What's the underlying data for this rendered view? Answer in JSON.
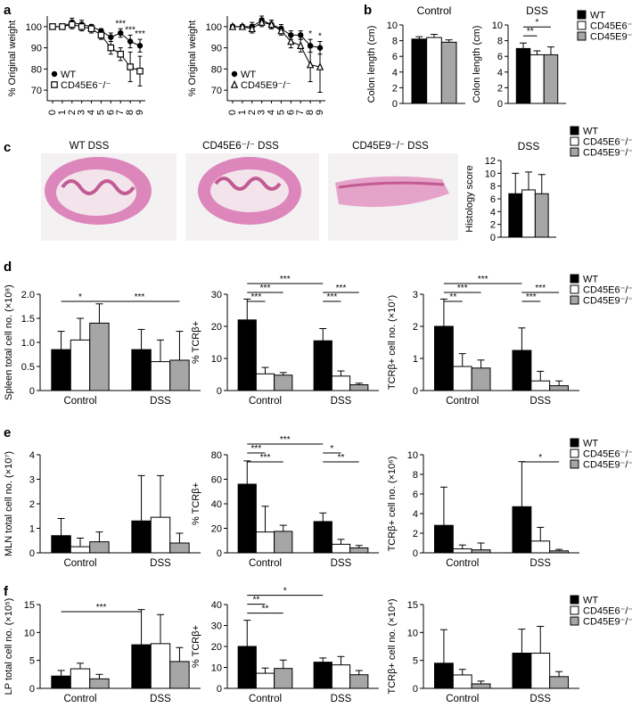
{
  "colors": {
    "WT": "#000000",
    "E6": "#ffffff",
    "E9": "#a6a6a6",
    "tissue": "#e6a3c9",
    "tissue_dark": "#c25a93"
  },
  "panel_labels": {
    "a": "a",
    "b": "b",
    "c": "c",
    "d": "d",
    "e": "e",
    "f": "f"
  },
  "legend": {
    "WT": "WT",
    "E6": "CD45E6⁻/⁻",
    "E9": "CD45E9⁻/⁻"
  },
  "histology": {
    "titles": [
      "WT DSS",
      "CD45E6⁻/⁻ DSS",
      "CD45E9⁻/⁻ DSS"
    ]
  },
  "chart_data": [
    {
      "id": "a1",
      "type": "line",
      "ylabel": "% Original weight",
      "x": [
        0,
        1,
        2,
        3,
        4,
        5,
        6,
        7,
        8,
        9
      ],
      "ylim": [
        65,
        105
      ],
      "yticks": [
        70,
        80,
        90,
        100
      ],
      "legend": [
        "WT",
        "CD45E6⁻/⁻"
      ],
      "series": [
        {
          "name": "WT",
          "marker": "filled-circle",
          "values": [
            100,
            100,
            102,
            101,
            100,
            98,
            95,
            97,
            93,
            91
          ],
          "err": [
            1,
            1,
            2,
            2,
            1,
            1,
            2,
            2,
            3,
            3
          ]
        },
        {
          "name": "CD45E6⁻/⁻",
          "marker": "open-square",
          "values": [
            100,
            100,
            101,
            100,
            99,
            96,
            90,
            87,
            81,
            79
          ],
          "err": [
            1,
            1,
            2,
            2,
            2,
            2,
            3,
            3,
            7,
            7
          ]
        }
      ],
      "annotations": [
        {
          "x": 7,
          "text": "***"
        },
        {
          "x": 8,
          "text": "***"
        },
        {
          "x": 9,
          "text": "***"
        }
      ]
    },
    {
      "id": "a2",
      "type": "line",
      "ylabel": "% Original weight",
      "x": [
        0,
        1,
        2,
        3,
        4,
        5,
        6,
        7,
        8,
        9
      ],
      "ylim": [
        65,
        105
      ],
      "yticks": [
        70,
        80,
        90,
        100
      ],
      "legend": [
        "WT",
        "CD45E9⁻/⁻"
      ],
      "series": [
        {
          "name": "WT",
          "marker": "filled-circle",
          "values": [
            100,
            100,
            100,
            103,
            101,
            99,
            96,
            96,
            91,
            90
          ],
          "err": [
            1,
            1,
            2,
            2,
            2,
            2,
            2,
            2,
            3,
            3
          ]
        },
        {
          "name": "CD45E9⁻/⁻",
          "marker": "open-triangle",
          "values": [
            100,
            100,
            99,
            102,
            101,
            98,
            93,
            91,
            82,
            81
          ],
          "err": [
            1,
            1,
            2,
            2,
            2,
            2,
            3,
            3,
            8,
            12
          ]
        }
      ],
      "annotations": [
        {
          "x": 8,
          "text": "*"
        },
        {
          "x": 9,
          "text": "*"
        }
      ]
    },
    {
      "id": "b1",
      "type": "bar",
      "title": "Control",
      "ylabel": "Colon length (cm)",
      "ylim": [
        0,
        10
      ],
      "yticks": [
        0,
        2,
        4,
        6,
        8,
        10
      ],
      "groups": [
        {
          "label": "",
          "values": [
            8.2,
            8.4,
            7.8
          ],
          "err": [
            0.3,
            0.4,
            0.3
          ]
        }
      ],
      "sig": []
    },
    {
      "id": "b2",
      "type": "bar",
      "title": "DSS",
      "ylabel": "Colon length (cm)",
      "ylim": [
        0,
        10
      ],
      "yticks": [
        0,
        2,
        4,
        6,
        8,
        10
      ],
      "groups": [
        {
          "label": "",
          "values": [
            7.0,
            6.2,
            6.2
          ],
          "err": [
            0.7,
            0.5,
            1.0
          ]
        }
      ],
      "sig": [
        {
          "from": [
            0,
            0
          ],
          "to": [
            0,
            2
          ],
          "level": 1,
          "text": "*"
        },
        {
          "from": [
            0,
            0
          ],
          "to": [
            0,
            1
          ],
          "level": 0,
          "text": "**"
        }
      ]
    },
    {
      "id": "c1",
      "type": "bar",
      "title": "DSS",
      "ylabel": "Histology score",
      "ylim": [
        0,
        12
      ],
      "yticks": [
        0,
        2,
        4,
        6,
        8,
        10,
        12
      ],
      "groups": [
        {
          "label": "",
          "values": [
            6.8,
            7.4,
            6.8
          ],
          "err": [
            3.2,
            2.8,
            3.0
          ]
        }
      ],
      "sig": []
    },
    {
      "id": "d1",
      "type": "bar",
      "ylabel": "Spleen total cell no. (×10⁸)",
      "ylim": [
        0,
        2.0
      ],
      "yticks": [
        0,
        0.5,
        1.0,
        1.5,
        2.0
      ],
      "ytick_labels": [
        "0",
        "0.5",
        "1.0",
        "1.5",
        "2.0"
      ],
      "groups": [
        {
          "label": "Control",
          "values": [
            0.85,
            1.05,
            1.4
          ],
          "err": [
            0.38,
            0.45,
            0.4
          ]
        },
        {
          "label": "DSS",
          "values": [
            0.85,
            0.6,
            0.63
          ],
          "err": [
            0.42,
            0.45,
            0.6
          ]
        }
      ],
      "sig": [
        {
          "from": [
            0,
            0
          ],
          "to": [
            0,
            2
          ],
          "level": 0,
          "text": "*"
        },
        {
          "from": [
            0,
            2
          ],
          "to": [
            1,
            2
          ],
          "level": 0,
          "text": "***"
        }
      ]
    },
    {
      "id": "d2",
      "type": "bar",
      "ylabel": "% TCRβ+",
      "ylim": [
        0,
        30
      ],
      "yticks": [
        0,
        10,
        20,
        30
      ],
      "groups": [
        {
          "label": "Control",
          "values": [
            22,
            5.2,
            4.8
          ],
          "err": [
            6.5,
            2,
            0.8
          ]
        },
        {
          "label": "DSS",
          "values": [
            15.5,
            4.5,
            1.8
          ],
          "err": [
            3.8,
            1.6,
            0.5
          ]
        }
      ],
      "sig": [
        {
          "from": [
            0,
            0
          ],
          "to": [
            1,
            0
          ],
          "level": 2,
          "text": "***"
        },
        {
          "from": [
            0,
            0
          ],
          "to": [
            0,
            2
          ],
          "level": 1,
          "text": "***"
        },
        {
          "from": [
            0,
            0
          ],
          "to": [
            0,
            1
          ],
          "level": 0,
          "text": "***"
        },
        {
          "from": [
            1,
            0
          ],
          "to": [
            1,
            2
          ],
          "level": 1,
          "text": "***"
        },
        {
          "from": [
            1,
            0
          ],
          "to": [
            1,
            1
          ],
          "level": 0,
          "text": "***"
        }
      ]
    },
    {
      "id": "d3",
      "type": "bar",
      "ylabel": "TCRβ+ cell no. (×10⁷)",
      "ylim": [
        0,
        3
      ],
      "yticks": [
        0,
        1,
        2,
        3
      ],
      "groups": [
        {
          "label": "Control",
          "values": [
            2.0,
            0.75,
            0.7
          ],
          "err": [
            0.85,
            0.4,
            0.25
          ]
        },
        {
          "label": "DSS",
          "values": [
            1.25,
            0.3,
            0.15
          ],
          "err": [
            0.7,
            0.3,
            0.15
          ]
        }
      ],
      "sig": [
        {
          "from": [
            0,
            0
          ],
          "to": [
            1,
            0
          ],
          "level": 2,
          "text": "***"
        },
        {
          "from": [
            0,
            0
          ],
          "to": [
            0,
            2
          ],
          "level": 1,
          "text": "***"
        },
        {
          "from": [
            0,
            0
          ],
          "to": [
            0,
            1
          ],
          "level": 0,
          "text": "**"
        },
        {
          "from": [
            1,
            0
          ],
          "to": [
            1,
            2
          ],
          "level": 1,
          "text": "***"
        },
        {
          "from": [
            1,
            0
          ],
          "to": [
            1,
            1
          ],
          "level": 0,
          "text": "***"
        }
      ]
    },
    {
      "id": "e1",
      "type": "bar",
      "ylabel": "MLN total cell no. (×10⁷)",
      "ylim": [
        0,
        4
      ],
      "yticks": [
        0,
        1,
        2,
        3,
        4
      ],
      "groups": [
        {
          "label": "Control",
          "values": [
            0.7,
            0.25,
            0.45
          ],
          "err": [
            0.7,
            0.35,
            0.4
          ]
        },
        {
          "label": "DSS",
          "values": [
            1.3,
            1.45,
            0.4
          ],
          "err": [
            1.85,
            1.7,
            0.4
          ]
        }
      ],
      "sig": []
    },
    {
      "id": "e2",
      "type": "bar",
      "ylabel": "% TCRβ+",
      "ylim": [
        0,
        80
      ],
      "yticks": [
        0,
        20,
        40,
        60,
        80
      ],
      "groups": [
        {
          "label": "Control",
          "values": [
            56,
            17,
            17.5
          ],
          "err": [
            19,
            21,
            5
          ]
        },
        {
          "label": "DSS",
          "values": [
            25.5,
            7,
            4
          ],
          "err": [
            7,
            4,
            2
          ]
        }
      ],
      "sig": [
        {
          "from": [
            0,
            0
          ],
          "to": [
            1,
            0
          ],
          "level": 2,
          "text": "***"
        },
        {
          "from": [
            0,
            0
          ],
          "to": [
            0,
            1
          ],
          "level": 1,
          "text": "***"
        },
        {
          "from": [
            0,
            0
          ],
          "to": [
            0,
            2
          ],
          "level": 0,
          "text": "***"
        },
        {
          "from": [
            1,
            0
          ],
          "to": [
            1,
            1
          ],
          "level": 1,
          "text": "*"
        },
        {
          "from": [
            1,
            0
          ],
          "to": [
            1,
            2
          ],
          "level": 0,
          "text": "**"
        }
      ]
    },
    {
      "id": "e3",
      "type": "bar",
      "ylabel": "TCRβ+ cell no. (×10⁶)",
      "ylim": [
        0,
        10
      ],
      "yticks": [
        0,
        2,
        4,
        6,
        8,
        10
      ],
      "groups": [
        {
          "label": "Control",
          "values": [
            2.8,
            0.4,
            0.3
          ],
          "err": [
            3.9,
            0.4,
            0.7
          ]
        },
        {
          "label": "DSS",
          "values": [
            4.7,
            1.2,
            0.2
          ],
          "err": [
            4.6,
            1.4,
            0.15
          ]
        }
      ],
      "sig": [
        {
          "from": [
            1,
            0
          ],
          "to": [
            1,
            2
          ],
          "level": 0,
          "text": "*"
        }
      ]
    },
    {
      "id": "f1",
      "type": "bar",
      "ylabel": "LP total cell no. (×10⁵)",
      "ylim": [
        0,
        15
      ],
      "yticks": [
        0,
        5,
        10,
        15
      ],
      "groups": [
        {
          "label": "Control",
          "values": [
            2.2,
            3.5,
            1.7
          ],
          "err": [
            1,
            1,
            0.8
          ]
        },
        {
          "label": "DSS",
          "values": [
            7.8,
            8.0,
            4.8
          ],
          "err": [
            6.3,
            5.2,
            2.5
          ]
        }
      ],
      "sig": [
        {
          "from": [
            0,
            0
          ],
          "to": [
            1,
            0
          ],
          "level": 0,
          "text": "***"
        }
      ]
    },
    {
      "id": "f2",
      "type": "bar",
      "ylabel": "% TCRβ+",
      "ylim": [
        0,
        40
      ],
      "yticks": [
        0,
        10,
        20,
        30,
        40
      ],
      "groups": [
        {
          "label": "Control",
          "values": [
            20,
            7.2,
            9.5
          ],
          "err": [
            12.5,
            2.5,
            4
          ]
        },
        {
          "label": "DSS",
          "values": [
            12.5,
            11.2,
            6.5
          ],
          "err": [
            2,
            4,
            2
          ]
        }
      ],
      "sig": [
        {
          "from": [
            0,
            0
          ],
          "to": [
            1,
            0
          ],
          "level": 2,
          "text": "*"
        },
        {
          "from": [
            0,
            0
          ],
          "to": [
            0,
            1
          ],
          "level": 1,
          "text": "**"
        },
        {
          "from": [
            0,
            0
          ],
          "to": [
            0,
            2
          ],
          "level": 0,
          "text": "**"
        }
      ]
    },
    {
      "id": "f3",
      "type": "bar",
      "ylabel": "TCRβ+ cell no. (×10⁴)",
      "ylim": [
        0,
        15
      ],
      "yticks": [
        0,
        5,
        10,
        15
      ],
      "groups": [
        {
          "label": "Control",
          "values": [
            4.5,
            2.4,
            0.8
          ],
          "err": [
            6,
            1,
            0.5
          ]
        },
        {
          "label": "DSS",
          "values": [
            6.3,
            6.3,
            2.1
          ],
          "err": [
            4.3,
            4.8,
            0.9
          ]
        }
      ],
      "sig": []
    }
  ]
}
